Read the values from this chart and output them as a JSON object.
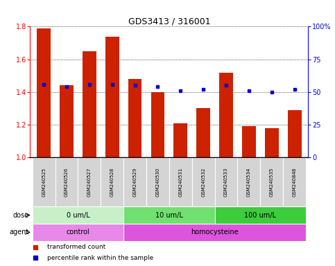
{
  "title": "GDS3413 / 316001",
  "samples": [
    "GSM240525",
    "GSM240526",
    "GSM240527",
    "GSM240528",
    "GSM240529",
    "GSM240530",
    "GSM240531",
    "GSM240532",
    "GSM240533",
    "GSM240534",
    "GSM240535",
    "GSM240848"
  ],
  "red_values": [
    1.79,
    1.44,
    1.65,
    1.74,
    1.48,
    1.4,
    1.21,
    1.3,
    1.52,
    1.19,
    1.18,
    1.29
  ],
  "blue_pct": [
    56,
    54,
    56,
    56,
    55,
    54,
    51,
    52,
    55,
    51,
    50,
    52
  ],
  "ylim_left": [
    1.0,
    1.8
  ],
  "ylim_right": [
    0,
    100
  ],
  "yticks_left": [
    1.0,
    1.2,
    1.4,
    1.6,
    1.8
  ],
  "yticks_right": [
    0,
    25,
    50,
    75,
    100
  ],
  "ytick_labels_right": [
    "0",
    "25",
    "50",
    "75",
    "100%"
  ],
  "dose_groups": [
    {
      "label": "0 um/L",
      "start": 0,
      "end": 4,
      "color": "#c8f0c8"
    },
    {
      "label": "10 um/L",
      "start": 4,
      "end": 8,
      "color": "#70e070"
    },
    {
      "label": "100 um/L",
      "start": 8,
      "end": 12,
      "color": "#3ccc3c"
    }
  ],
  "agent_groups": [
    {
      "label": "control",
      "start": 0,
      "end": 4,
      "color": "#e888e8"
    },
    {
      "label": "homocysteine",
      "start": 4,
      "end": 12,
      "color": "#dd55dd"
    }
  ],
  "dose_label": "dose",
  "agent_label": "agent",
  "bar_color": "#cc2200",
  "dot_color": "#0000cc",
  "legend_items": [
    "transformed count",
    "percentile rank within the sample"
  ],
  "bar_width": 0.6,
  "baseline": 1.0,
  "xlim": [
    -0.6,
    11.6
  ]
}
